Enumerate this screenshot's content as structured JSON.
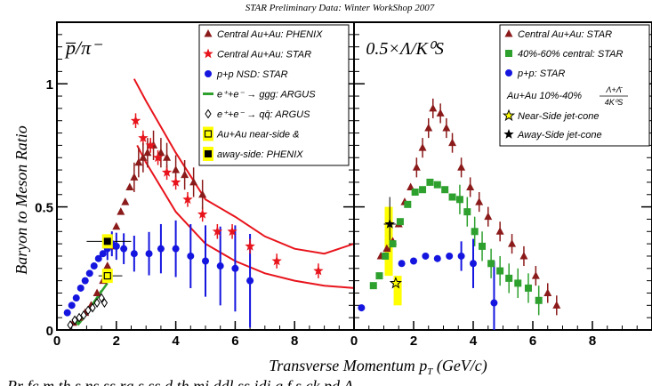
{
  "header": "STAR Preliminary Data: Winter WorkShop 2007",
  "footer": "Pr fc m th s ns ss ra s ss d th mi ddl ss idi g f s ck pd A",
  "ylabel": "Baryon to Meson Ratio",
  "xlabel": "Transverse Momentum p",
  "xlabel_sub": "T",
  "xlabel_units": " (GeV/c)",
  "colors": {
    "red": "#e8141c",
    "darkred": "#8b1a1a",
    "blue": "#1515e0",
    "green": "#2ea02e",
    "yellow": "#ffff00",
    "black": "#000000"
  },
  "chart_data": [
    {
      "type": "scatter",
      "panel_label": "p̅/π⁻",
      "x_range": [
        0,
        10
      ],
      "y_range": [
        0,
        1.25
      ],
      "x_ticks": [
        "0",
        "2",
        "4",
        "6",
        "8"
      ],
      "y_ticks": [
        "0",
        "0.5",
        "1"
      ],
      "legend_position": "top-right",
      "legend": [
        {
          "label": "Central Au+Au: PHENIX",
          "marker": "triangle",
          "color": "#8b1a1a"
        },
        {
          "label": "Central Au+Au: STAR",
          "marker": "star",
          "color": "#e8141c"
        },
        {
          "label": "p+p NSD: STAR",
          "marker": "circle",
          "color": "#1515e0"
        },
        {
          "label": "e⁺+e⁻ → ggg: ARGUS",
          "marker": "line",
          "color": "#2ea02e"
        },
        {
          "label": "e⁺+e⁻ → qq̄: ARGUS",
          "marker": "open-diamond",
          "color": "#000000"
        },
        {
          "label": "Au+Au near-side &",
          "marker": "open-square-yellow",
          "color": "#000000"
        },
        {
          "label": "away-side: PHENIX",
          "marker": "filled-square-yellow",
          "color": "#000000"
        }
      ],
      "series": [
        {
          "name": "Central Au+Au: PHENIX",
          "marker": "triangle",
          "color": "#8b1a1a",
          "points": [
            [
              0.55,
              0.03
            ],
            [
              0.75,
              0.05
            ],
            [
              0.95,
              0.07
            ],
            [
              1.15,
              0.1
            ],
            [
              1.35,
              0.15
            ],
            [
              1.55,
              0.2
            ],
            [
              1.7,
              0.26
            ],
            [
              1.85,
              0.34
            ],
            [
              2.0,
              0.42
            ],
            [
              2.15,
              0.48
            ],
            [
              2.3,
              0.52
            ],
            [
              2.45,
              0.58
            ],
            [
              2.6,
              0.62
            ],
            [
              2.75,
              0.68
            ],
            [
              2.9,
              0.7
            ],
            [
              3.05,
              0.72
            ],
            [
              3.25,
              0.75
            ],
            [
              3.5,
              0.72
            ],
            [
              3.7,
              0.7
            ],
            [
              4.0,
              0.65
            ],
            [
              4.3,
              0.63
            ],
            [
              4.6,
              0.6
            ],
            [
              4.9,
              0.55
            ]
          ]
        },
        {
          "name": "Central Au+Au: STAR",
          "marker": "star",
          "color": "#e8141c",
          "points": [
            [
              2.65,
              0.85
            ],
            [
              2.9,
              0.78
            ],
            [
              3.15,
              0.75
            ],
            [
              3.4,
              0.7
            ],
            [
              3.7,
              0.64
            ],
            [
              4.0,
              0.6
            ],
            [
              4.4,
              0.53
            ],
            [
              4.9,
              0.47
            ],
            [
              5.4,
              0.4
            ],
            [
              5.9,
              0.4
            ],
            [
              6.5,
              0.34
            ],
            [
              7.4,
              0.28
            ],
            [
              8.8,
              0.24
            ]
          ]
        },
        {
          "name": "p+p NSD: STAR",
          "marker": "circle",
          "color": "#1515e0",
          "points": [
            [
              0.35,
              0.07
            ],
            [
              0.5,
              0.1
            ],
            [
              0.65,
              0.13
            ],
            [
              0.8,
              0.17
            ],
            [
              0.95,
              0.2
            ],
            [
              1.1,
              0.23
            ],
            [
              1.25,
              0.26
            ],
            [
              1.4,
              0.29
            ],
            [
              1.55,
              0.31
            ],
            [
              1.7,
              0.33
            ],
            [
              1.85,
              0.35
            ],
            [
              2.0,
              0.34
            ],
            [
              2.25,
              0.33
            ],
            [
              2.6,
              0.31
            ],
            [
              3.1,
              0.31
            ],
            [
              3.5,
              0.33
            ],
            [
              4.0,
              0.33
            ],
            [
              4.5,
              0.3
            ],
            [
              5.0,
              0.28
            ],
            [
              5.5,
              0.26
            ],
            [
              6.0,
              0.25
            ],
            [
              6.5,
              0.2
            ]
          ]
        },
        {
          "name": "e⁺+e⁻ → qq̄: ARGUS",
          "marker": "open-diamond",
          "color": "#000000",
          "points": [
            [
              0.45,
              0.02
            ],
            [
              0.6,
              0.04
            ],
            [
              0.75,
              0.05
            ],
            [
              0.9,
              0.06
            ],
            [
              1.05,
              0.08
            ],
            [
              1.2,
              0.09
            ],
            [
              1.35,
              0.11
            ],
            [
              1.5,
              0.13
            ],
            [
              1.6,
              0.11
            ]
          ]
        },
        {
          "name": "Au+Au near-side &",
          "marker": "open-square-yellow",
          "color": "#000000",
          "points": [
            [
              1.7,
              0.22
            ]
          ]
        },
        {
          "name": "away-side: PHENIX",
          "marker": "filled-square-yellow",
          "color": "#000000",
          "points": [
            [
              1.7,
              0.36
            ]
          ]
        }
      ]
    },
    {
      "type": "scatter",
      "panel_label": "0.5×Λ/K⁰S",
      "x_range": [
        0,
        10
      ],
      "y_range": [
        0,
        1.25
      ],
      "x_ticks": [
        "0",
        "2",
        "4",
        "6",
        "8"
      ],
      "legend_position": "top-right",
      "legend": [
        {
          "label": "Central Au+Au: STAR",
          "marker": "triangle",
          "color": "#8b1a1a"
        },
        {
          "label": "40%-60% central: STAR",
          "marker": "square",
          "color": "#2ea02e"
        },
        {
          "label": "p+p: STAR",
          "marker": "circle",
          "color": "#1515e0"
        },
        {
          "label": "Au+Au 10%-40%",
          "marker": "none",
          "color": "#000000"
        },
        {
          "label": "Near-Side jet-cone",
          "marker": "open-star-yellow",
          "color": "#000000"
        },
        {
          "label": "Away-Side jet-cone",
          "marker": "filled-star-yellow",
          "color": "#000000"
        }
      ],
      "fraction_label": {
        "numerator": "Λ+Λ̄",
        "denominator": "4K⁰S"
      },
      "series": [
        {
          "name": "Central Au+Au: STAR",
          "marker": "triangle",
          "color": "#8b1a1a",
          "points": [
            [
              0.9,
              0.3
            ],
            [
              1.1,
              0.33
            ],
            [
              1.3,
              0.36
            ],
            [
              1.5,
              0.43
            ],
            [
              1.7,
              0.52
            ],
            [
              1.9,
              0.58
            ],
            [
              2.1,
              0.66
            ],
            [
              2.3,
              0.74
            ],
            [
              2.5,
              0.82
            ],
            [
              2.65,
              0.9
            ],
            [
              2.9,
              0.88
            ],
            [
              3.1,
              0.82
            ],
            [
              3.3,
              0.76
            ],
            [
              3.6,
              0.66
            ],
            [
              3.9,
              0.58
            ],
            [
              4.2,
              0.52
            ],
            [
              4.5,
              0.46
            ],
            [
              4.9,
              0.4
            ],
            [
              5.3,
              0.35
            ],
            [
              5.7,
              0.3
            ],
            [
              6.1,
              0.22
            ],
            [
              6.5,
              0.15
            ],
            [
              6.8,
              0.1
            ]
          ]
        },
        {
          "name": "40%-60% central: STAR",
          "marker": "square",
          "color": "#2ea02e",
          "points": [
            [
              0.65,
              0.18
            ],
            [
              0.85,
              0.22
            ],
            [
              1.05,
              0.3
            ],
            [
              1.3,
              0.35
            ],
            [
              1.55,
              0.44
            ],
            [
              1.8,
              0.51
            ],
            [
              2.05,
              0.56
            ],
            [
              2.3,
              0.57
            ],
            [
              2.55,
              0.6
            ],
            [
              2.8,
              0.59
            ],
            [
              3.05,
              0.57
            ],
            [
              3.3,
              0.54
            ],
            [
              3.55,
              0.53
            ],
            [
              3.8,
              0.48
            ],
            [
              4.05,
              0.4
            ],
            [
              4.3,
              0.34
            ],
            [
              4.6,
              0.27
            ],
            [
              4.9,
              0.24
            ],
            [
              5.2,
              0.21
            ],
            [
              5.5,
              0.19
            ],
            [
              5.85,
              0.17
            ],
            [
              6.2,
              0.12
            ]
          ]
        },
        {
          "name": "p+p: STAR",
          "marker": "circle",
          "color": "#1515e0",
          "points": [
            [
              0.25,
              0.09
            ],
            [
              1.6,
              0.27
            ],
            [
              2.0,
              0.28
            ],
            [
              2.4,
              0.3
            ],
            [
              2.8,
              0.29
            ],
            [
              3.2,
              0.3
            ],
            [
              3.6,
              0.3
            ],
            [
              4.0,
              0.27
            ],
            [
              4.7,
              0.11
            ]
          ]
        },
        {
          "name": "Near-Side jet-cone",
          "marker": "open-star-yellow",
          "color": "#000000",
          "points": [
            [
              1.4,
              0.19
            ]
          ]
        },
        {
          "name": "Away-Side jet-cone",
          "marker": "filled-star-yellow",
          "color": "#000000",
          "points": [
            [
              1.2,
              0.43
            ]
          ]
        }
      ]
    }
  ]
}
